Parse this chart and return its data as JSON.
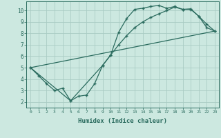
{
  "xlabel": "Humidex (Indice chaleur)",
  "bg_color": "#cce8e0",
  "line_color": "#2a6b5e",
  "grid_color": "#aaccC4",
  "xlim": [
    -0.5,
    23.5
  ],
  "ylim": [
    1.5,
    10.8
  ],
  "xticks": [
    0,
    1,
    2,
    3,
    4,
    5,
    6,
    7,
    8,
    9,
    10,
    11,
    12,
    13,
    14,
    15,
    16,
    17,
    18,
    19,
    20,
    21,
    22,
    23
  ],
  "yticks": [
    2,
    3,
    4,
    5,
    6,
    7,
    8,
    9,
    10
  ],
  "series1_x": [
    0,
    1,
    2,
    3,
    4,
    5,
    6,
    7,
    8,
    9,
    10,
    11,
    12,
    13,
    14,
    15,
    16,
    17,
    18,
    19,
    20,
    21,
    22,
    23
  ],
  "series1_y": [
    5.0,
    4.3,
    3.6,
    3.0,
    3.2,
    2.1,
    2.5,
    2.6,
    3.6,
    5.2,
    6.1,
    8.1,
    9.3,
    10.1,
    10.2,
    10.35,
    10.45,
    10.2,
    10.35,
    10.1,
    10.15,
    9.5,
    8.8,
    8.2
  ],
  "series2_x": [
    0,
    5,
    9,
    10,
    11,
    12,
    13,
    14,
    15,
    16,
    17,
    18,
    19,
    20,
    21,
    22,
    23
  ],
  "series2_y": [
    5.0,
    2.1,
    5.2,
    6.1,
    7.0,
    7.8,
    8.5,
    9.0,
    9.4,
    9.7,
    10.0,
    10.3,
    10.1,
    10.1,
    9.5,
    8.5,
    8.2
  ],
  "series3_x": [
    0,
    23
  ],
  "series3_y": [
    5.0,
    8.2
  ]
}
